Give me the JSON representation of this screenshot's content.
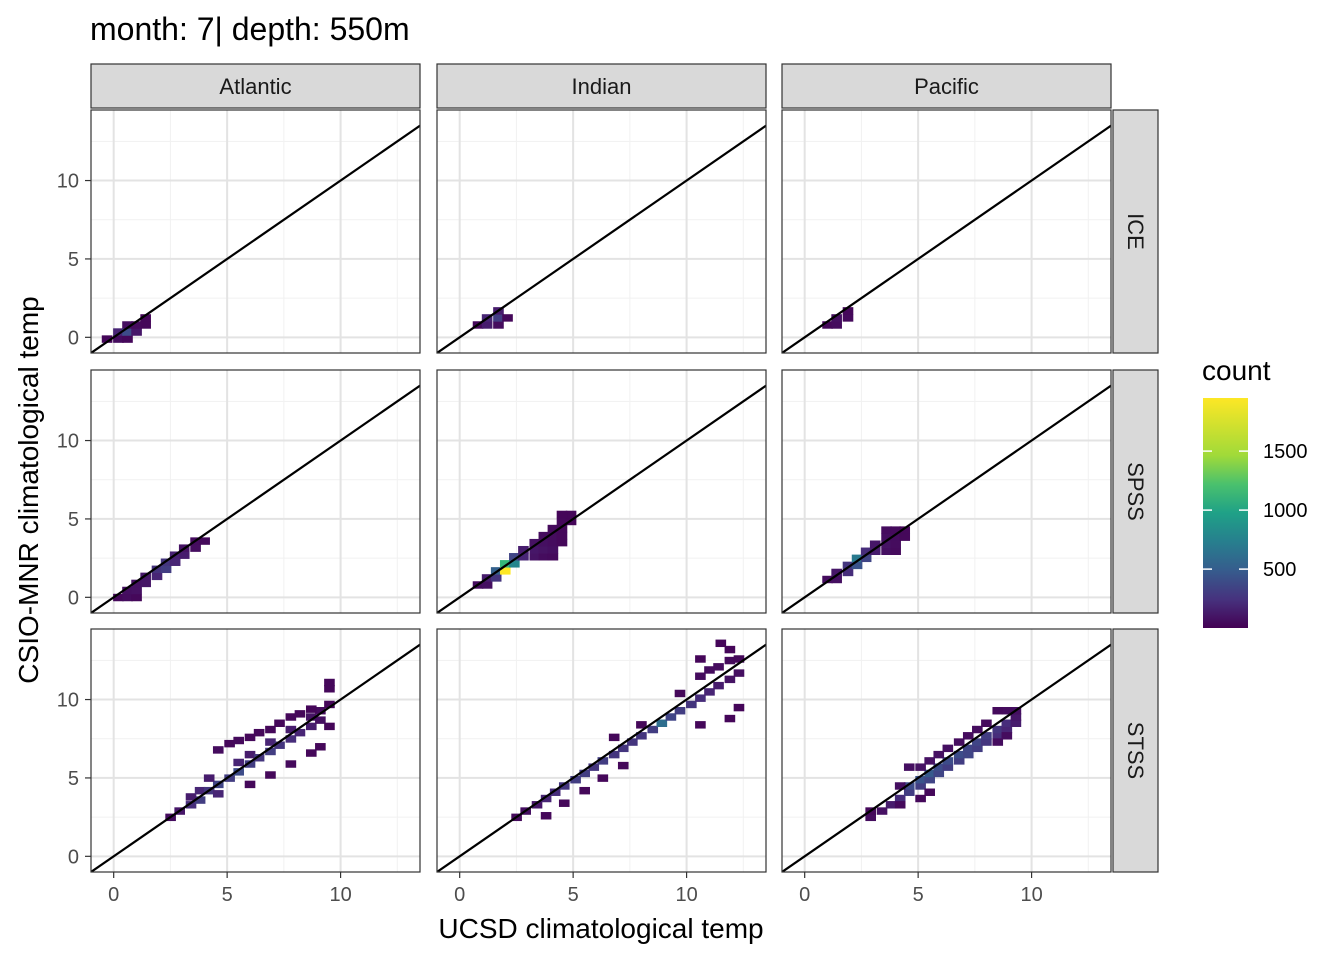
{
  "chart_data": {
    "type": "heatmap",
    "title": "month: 7| depth: 550m",
    "xlabel": "UCSD climatological temp",
    "ylabel": "CSIO-MNR climatological temp",
    "facet_columns": [
      "Atlantic",
      "Indian",
      "Pacific"
    ],
    "facet_rows": [
      "ICE",
      "SPSS",
      "STSS"
    ],
    "xlim": [
      -1,
      13.5
    ],
    "ylim": [
      -1,
      14.5
    ],
    "x_ticks": [
      0,
      5,
      10
    ],
    "y_ticks": [
      0,
      5,
      10
    ],
    "reference_line": {
      "slope": 1,
      "intercept": 0
    },
    "bin_width": 0.45,
    "legend": {
      "title": "count",
      "ticks": [
        500,
        1000,
        1500
      ],
      "range": [
        1,
        1950
      ],
      "colormap": "viridis",
      "placement": "right"
    },
    "grid": true,
    "panels": [
      {
        "column": "Atlantic",
        "row": "ICE",
        "cells": [
          [
            -0.3,
            -0.1,
            30
          ],
          [
            0.2,
            -0.1,
            60
          ],
          [
            0.6,
            -0.1,
            40
          ],
          [
            0.2,
            0.35,
            200
          ],
          [
            0.6,
            0.35,
            450
          ],
          [
            1.0,
            0.35,
            120
          ],
          [
            0.6,
            0.8,
            80
          ],
          [
            1.0,
            0.8,
            60
          ],
          [
            1.4,
            0.8,
            30
          ],
          [
            1.4,
            1.25,
            30
          ]
        ]
      },
      {
        "column": "Indian",
        "row": "ICE",
        "cells": [
          [
            0.8,
            0.8,
            40
          ],
          [
            1.2,
            0.8,
            150
          ],
          [
            1.7,
            0.8,
            60
          ],
          [
            1.2,
            1.25,
            200
          ],
          [
            1.7,
            1.25,
            350
          ],
          [
            1.7,
            1.7,
            150
          ],
          [
            2.1,
            1.25,
            40
          ]
        ]
      },
      {
        "column": "Pacific",
        "row": "ICE",
        "cells": [
          [
            1.0,
            0.8,
            40
          ],
          [
            1.4,
            0.8,
            60
          ],
          [
            1.4,
            1.25,
            80
          ],
          [
            1.9,
            1.25,
            50
          ],
          [
            1.9,
            1.7,
            40
          ]
        ]
      },
      {
        "column": "Atlantic",
        "row": "SPSS",
        "cells": [
          [
            0.2,
            0.0,
            40
          ],
          [
            0.6,
            0.0,
            60
          ],
          [
            1.0,
            0.0,
            40
          ],
          [
            0.6,
            0.45,
            80
          ],
          [
            1.0,
            0.45,
            90
          ],
          [
            1.0,
            0.9,
            90
          ],
          [
            1.4,
            0.9,
            110
          ],
          [
            1.4,
            1.35,
            130
          ],
          [
            1.9,
            1.35,
            200
          ],
          [
            1.9,
            1.8,
            280
          ],
          [
            2.3,
            1.8,
            350
          ],
          [
            2.3,
            2.25,
            300
          ],
          [
            2.7,
            2.25,
            200
          ],
          [
            2.7,
            2.7,
            180
          ],
          [
            3.1,
            2.7,
            150
          ],
          [
            3.1,
            3.15,
            100
          ],
          [
            3.6,
            3.15,
            70
          ],
          [
            3.6,
            3.6,
            60
          ],
          [
            4.0,
            3.6,
            50
          ]
        ]
      },
      {
        "column": "Indian",
        "row": "SPSS",
        "cells": [
          [
            0.8,
            0.8,
            60
          ],
          [
            1.2,
            0.8,
            80
          ],
          [
            1.2,
            1.25,
            150
          ],
          [
            1.6,
            1.25,
            300
          ],
          [
            1.6,
            1.7,
            600
          ],
          [
            2.0,
            1.7,
            1950
          ],
          [
            2.0,
            2.15,
            1300
          ],
          [
            2.4,
            2.15,
            900
          ],
          [
            2.4,
            2.6,
            400
          ],
          [
            2.8,
            2.6,
            200
          ],
          [
            3.3,
            2.6,
            100
          ],
          [
            3.7,
            2.6,
            60
          ],
          [
            4.1,
            2.6,
            50
          ],
          [
            2.8,
            3.05,
            150
          ],
          [
            3.3,
            3.05,
            120
          ],
          [
            3.7,
            3.05,
            100
          ],
          [
            4.1,
            3.05,
            80
          ],
          [
            3.3,
            3.5,
            90
          ],
          [
            3.7,
            3.5,
            80
          ],
          [
            4.1,
            3.5,
            60
          ],
          [
            4.5,
            3.5,
            40
          ],
          [
            3.7,
            3.95,
            60
          ],
          [
            4.1,
            3.95,
            60
          ],
          [
            4.5,
            3.95,
            40
          ],
          [
            4.1,
            4.4,
            50
          ],
          [
            4.5,
            4.4,
            40
          ],
          [
            4.5,
            4.85,
            40
          ],
          [
            4.9,
            4.85,
            30
          ],
          [
            4.9,
            5.3,
            30
          ],
          [
            4.5,
            5.3,
            30
          ]
        ]
      },
      {
        "column": "Pacific",
        "row": "SPSS",
        "cells": [
          [
            1.0,
            1.15,
            60
          ],
          [
            1.4,
            1.15,
            80
          ],
          [
            1.4,
            1.6,
            120
          ],
          [
            1.9,
            1.6,
            250
          ],
          [
            1.9,
            2.05,
            300
          ],
          [
            2.3,
            2.05,
            500
          ],
          [
            2.3,
            2.5,
            800
          ],
          [
            2.7,
            2.5,
            400
          ],
          [
            2.7,
            2.95,
            250
          ],
          [
            3.1,
            2.95,
            150
          ],
          [
            3.6,
            2.95,
            80
          ],
          [
            4.0,
            2.95,
            50
          ],
          [
            3.1,
            3.4,
            120
          ],
          [
            3.6,
            3.4,
            100
          ],
          [
            4.0,
            3.4,
            60
          ],
          [
            3.6,
            3.85,
            80
          ],
          [
            4.0,
            3.85,
            60
          ],
          [
            4.4,
            3.85,
            40
          ],
          [
            3.6,
            4.3,
            60
          ],
          [
            4.0,
            4.3,
            50
          ],
          [
            4.4,
            4.3,
            40
          ]
        ]
      },
      {
        "column": "Atlantic",
        "row": "STSS",
        "cells": [
          [
            2.5,
            2.5,
            60
          ],
          [
            2.9,
            2.9,
            120
          ],
          [
            3.4,
            3.3,
            250
          ],
          [
            3.8,
            3.6,
            350
          ],
          [
            3.4,
            3.8,
            150
          ],
          [
            3.8,
            4.2,
            200
          ],
          [
            4.2,
            4.2,
            300
          ],
          [
            4.6,
            4.6,
            400
          ],
          [
            4.6,
            4.0,
            200
          ],
          [
            4.2,
            5.0,
            150
          ],
          [
            5.1,
            5.0,
            350
          ],
          [
            5.5,
            5.4,
            450
          ],
          [
            5.5,
            6.0,
            200
          ],
          [
            6.0,
            5.9,
            350
          ],
          [
            6.0,
            6.5,
            150
          ],
          [
            6.4,
            6.3,
            300
          ],
          [
            6.9,
            6.7,
            350
          ],
          [
            6.9,
            7.3,
            200
          ],
          [
            7.3,
            7.1,
            300
          ],
          [
            7.8,
            7.5,
            250
          ],
          [
            7.8,
            8.1,
            150
          ],
          [
            8.2,
            7.9,
            200
          ],
          [
            8.7,
            8.3,
            150
          ],
          [
            8.7,
            8.9,
            100
          ],
          [
            9.1,
            8.7,
            80
          ],
          [
            9.1,
            9.3,
            60
          ],
          [
            4.6,
            6.8,
            60
          ],
          [
            5.1,
            7.2,
            40
          ],
          [
            5.5,
            7.4,
            50
          ],
          [
            6.0,
            7.6,
            40
          ],
          [
            6.4,
            7.9,
            40
          ],
          [
            6.9,
            8.1,
            40
          ],
          [
            7.3,
            8.5,
            40
          ],
          [
            7.8,
            8.9,
            40
          ],
          [
            8.2,
            9.1,
            40
          ],
          [
            8.7,
            9.4,
            30
          ],
          [
            6.0,
            4.6,
            40
          ],
          [
            6.9,
            5.2,
            40
          ],
          [
            7.8,
            5.9,
            50
          ],
          [
            8.7,
            6.6,
            40
          ],
          [
            9.1,
            7.0,
            40
          ],
          [
            9.5,
            8.3,
            30
          ],
          [
            9.5,
            9.7,
            30
          ],
          [
            9.5,
            10.7,
            40
          ],
          [
            9.5,
            11.1,
            40
          ]
        ]
      },
      {
        "column": "Indian",
        "row": "STSS",
        "cells": [
          [
            2.5,
            2.5,
            50
          ],
          [
            2.9,
            2.9,
            80
          ],
          [
            3.4,
            3.3,
            120
          ],
          [
            3.8,
            3.7,
            200
          ],
          [
            4.2,
            4.1,
            250
          ],
          [
            4.6,
            4.5,
            300
          ],
          [
            5.1,
            4.9,
            350
          ],
          [
            5.5,
            5.3,
            350
          ],
          [
            5.9,
            5.7,
            300
          ],
          [
            6.3,
            6.1,
            350
          ],
          [
            6.8,
            6.5,
            300
          ],
          [
            7.2,
            6.9,
            300
          ],
          [
            7.6,
            7.3,
            300
          ],
          [
            8.0,
            7.7,
            300
          ],
          [
            8.5,
            8.1,
            350
          ],
          [
            8.9,
            8.5,
            700
          ],
          [
            9.3,
            8.9,
            400
          ],
          [
            9.7,
            9.3,
            350
          ],
          [
            10.2,
            9.7,
            300
          ],
          [
            10.6,
            10.1,
            250
          ],
          [
            11.0,
            10.5,
            200
          ],
          [
            11.4,
            10.9,
            150
          ],
          [
            11.9,
            11.3,
            100
          ],
          [
            12.3,
            11.7,
            80
          ],
          [
            11.4,
            12.1,
            60
          ],
          [
            11.9,
            12.5,
            50
          ],
          [
            11.0,
            11.9,
            60
          ],
          [
            10.6,
            11.5,
            60
          ],
          [
            12.3,
            12.6,
            40
          ],
          [
            11.9,
            13.2,
            30
          ],
          [
            11.5,
            13.6,
            30
          ],
          [
            6.8,
            7.6,
            40
          ],
          [
            8.0,
            8.4,
            40
          ],
          [
            9.7,
            10.4,
            40
          ],
          [
            10.6,
            12.6,
            30
          ],
          [
            10.6,
            8.4,
            40
          ],
          [
            11.9,
            8.8,
            30
          ],
          [
            12.3,
            9.5,
            30
          ],
          [
            7.2,
            5.8,
            40
          ],
          [
            6.3,
            5.0,
            40
          ],
          [
            5.5,
            4.2,
            40
          ],
          [
            4.6,
            3.4,
            40
          ],
          [
            3.8,
            2.6,
            40
          ]
        ]
      },
      {
        "column": "Pacific",
        "row": "STSS",
        "cells": [
          [
            2.9,
            2.5,
            60
          ],
          [
            3.4,
            2.9,
            90
          ],
          [
            3.8,
            3.3,
            150
          ],
          [
            4.2,
            3.7,
            250
          ],
          [
            4.6,
            4.1,
            350
          ],
          [
            4.6,
            4.5,
            450
          ],
          [
            5.1,
            4.5,
            350
          ],
          [
            5.1,
            4.9,
            500
          ],
          [
            5.5,
            4.9,
            400
          ],
          [
            5.5,
            5.3,
            550
          ],
          [
            5.9,
            5.3,
            400
          ],
          [
            5.9,
            5.7,
            450
          ],
          [
            6.3,
            5.7,
            350
          ],
          [
            6.3,
            6.1,
            450
          ],
          [
            6.8,
            6.1,
            350
          ],
          [
            6.8,
            6.5,
            450
          ],
          [
            7.2,
            6.5,
            400
          ],
          [
            7.2,
            6.9,
            400
          ],
          [
            7.6,
            6.9,
            350
          ],
          [
            7.6,
            7.3,
            400
          ],
          [
            8.0,
            7.3,
            300
          ],
          [
            8.0,
            7.7,
            350
          ],
          [
            8.5,
            7.7,
            250
          ],
          [
            8.5,
            8.1,
            300
          ],
          [
            8.9,
            8.1,
            200
          ],
          [
            8.9,
            8.5,
            250
          ],
          [
            9.3,
            8.5,
            150
          ],
          [
            9.3,
            8.9,
            120
          ],
          [
            9.3,
            9.3,
            80
          ],
          [
            8.9,
            9.3,
            60
          ],
          [
            8.5,
            9.3,
            50
          ],
          [
            4.6,
            5.7,
            80
          ],
          [
            5.1,
            5.7,
            100
          ],
          [
            5.5,
            6.1,
            90
          ],
          [
            5.9,
            6.5,
            90
          ],
          [
            6.3,
            6.9,
            80
          ],
          [
            6.8,
            7.3,
            70
          ],
          [
            7.2,
            7.7,
            60
          ],
          [
            7.6,
            8.1,
            60
          ],
          [
            8.0,
            8.5,
            50
          ],
          [
            2.9,
            2.9,
            40
          ],
          [
            4.2,
            4.5,
            80
          ],
          [
            4.2,
            3.3,
            50
          ],
          [
            5.1,
            3.7,
            40
          ],
          [
            5.5,
            4.1,
            40
          ],
          [
            8.5,
            7.3,
            60
          ],
          [
            8.9,
            7.7,
            60
          ]
        ]
      }
    ]
  }
}
